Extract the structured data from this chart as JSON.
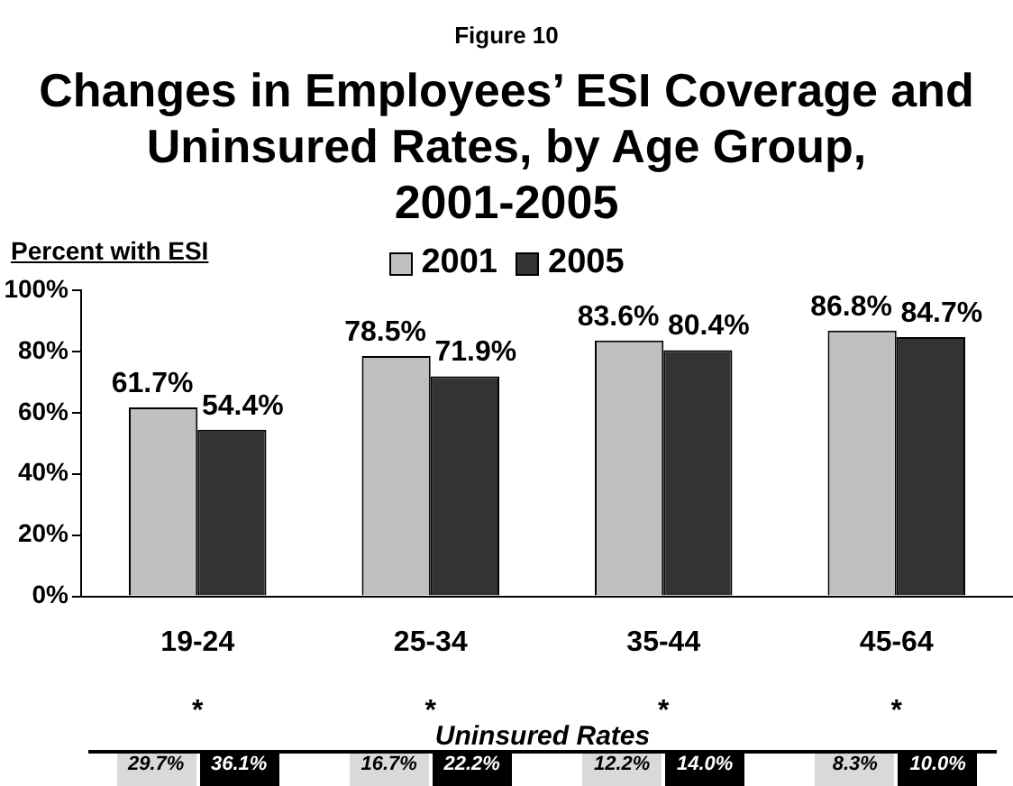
{
  "chart_data": [
    {
      "type": "bar",
      "title": "Changes in Employees’ ESI Coverage and Uninsured Rates, by Age Group, 2001-2005",
      "ylabel": "Percent with ESI",
      "annotations": [
        "Figure 10"
      ],
      "categories": [
        "19-24",
        "25-34",
        "35-44",
        "45-64"
      ],
      "series": [
        {
          "name": "2001",
          "color": "#c0c0c0",
          "values": [
            61.7,
            78.5,
            83.6,
            86.8
          ],
          "value_labels": [
            "61.7%",
            "78.5%",
            "83.6%",
            "86.8%"
          ]
        },
        {
          "name": "2005",
          "color": "#333333",
          "values": [
            54.4,
            71.9,
            80.4,
            84.7
          ],
          "value_labels": [
            "54.4%",
            "71.9%",
            "80.4%",
            "84.7%"
          ]
        }
      ],
      "ylim": [
        0,
        100
      ],
      "yticks": [
        {
          "value": 0,
          "label": "0%"
        },
        {
          "value": 20,
          "label": "20%"
        },
        {
          "value": 40,
          "label": "40%"
        },
        {
          "value": 60,
          "label": "60%"
        },
        {
          "value": 80,
          "label": "80%"
        },
        {
          "value": 100,
          "label": "100%"
        }
      ],
      "grid": false,
      "legend": "top"
    },
    {
      "type": "other",
      "title": "Uninsured Rates",
      "annotations": [
        "*",
        "*",
        "*",
        "*"
      ],
      "categories": [
        null,
        null,
        null,
        null,
        null,
        null,
        null,
        null
      ],
      "values": [
        29.7,
        36.1,
        16.7,
        22.2,
        12.2,
        14.0,
        8.3,
        10.0
      ],
      "value_labels": [
        "29.7%",
        "36.1%",
        "16.7%",
        "22.2%",
        "12.2%",
        "14.0%",
        "8.3%",
        "10.0%"
      ],
      "colors": [
        "#d9d9d9",
        "#000000",
        "#d9d9d9",
        "#000000",
        "#d9d9d9",
        "#000000",
        "#d9d9d9",
        "#000000"
      ]
    }
  ]
}
